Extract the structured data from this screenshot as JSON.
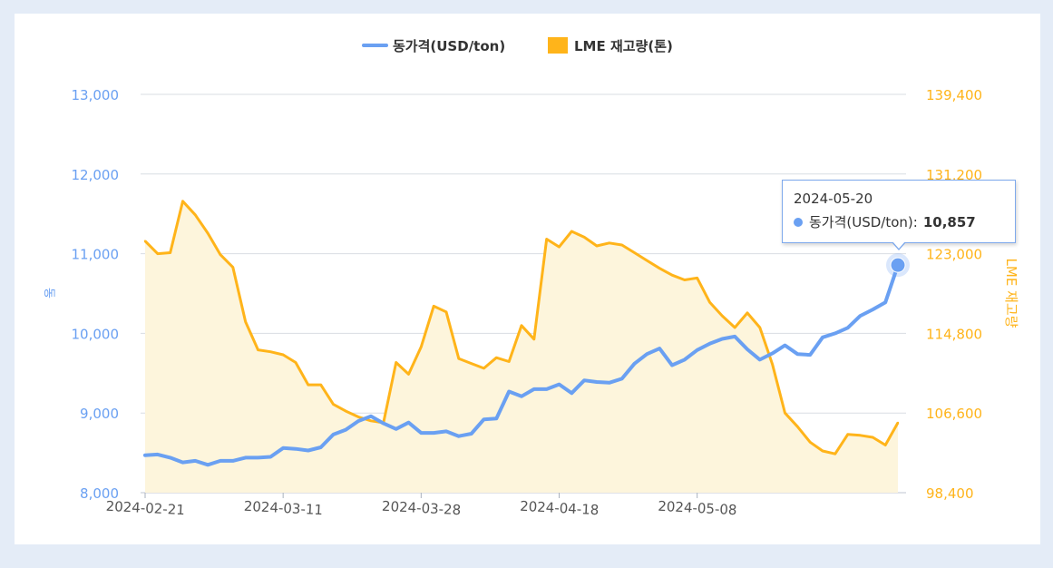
{
  "chart_data": {
    "type": "line",
    "legend_position": "top-center",
    "grid": true,
    "x_tick_labels": [
      "2024-02-21",
      "2024-03-11",
      "2024-03-28",
      "2024-04-18",
      "2024-05-08"
    ],
    "x_tick_indices": [
      0,
      11,
      22,
      33,
      44
    ],
    "series": [
      {
        "name": "동가격(USD/ton)",
        "axis": "left",
        "color": "#6aa0f2",
        "kind": "line",
        "values": [
          8470,
          8480,
          8440,
          8380,
          8400,
          8350,
          8400,
          8400,
          8440,
          8440,
          8450,
          8560,
          8550,
          8530,
          8570,
          8730,
          8790,
          8900,
          8960,
          8870,
          8800,
          8880,
          8750,
          8750,
          8770,
          8710,
          8740,
          8920,
          8930,
          9270,
          9210,
          9300,
          9300,
          9360,
          9250,
          9410,
          9390,
          9380,
          9430,
          9620,
          9740,
          9810,
          9600,
          9670,
          9790,
          9870,
          9930,
          9960,
          9800,
          9670,
          9750,
          9850,
          9740,
          9730,
          9950,
          10000,
          10070,
          10220,
          10300,
          10390,
          10857
        ]
      },
      {
        "name": "LME 재고량(톤)",
        "axis": "right",
        "color": "#ffb41a",
        "fill": "#fdf5dc",
        "kind": "area",
        "values": [
          124300,
          123000,
          123100,
          128400,
          127000,
          125100,
          122900,
          121600,
          116000,
          113100,
          112900,
          112600,
          111800,
          109500,
          109500,
          107500,
          106800,
          106200,
          105800,
          105600,
          111800,
          110600,
          113400,
          117600,
          117000,
          112200,
          111700,
          111200,
          112300,
          111900,
          115600,
          114200,
          124500,
          123700,
          125300,
          124700,
          123800,
          124100,
          123900,
          123100,
          122300,
          121500,
          120800,
          120300,
          120500,
          118000,
          116600,
          115400,
          116900,
          115400,
          111600,
          106600,
          105200,
          103600,
          102700,
          102400,
          104400,
          104300,
          104100,
          103300,
          105600
        ]
      }
    ],
    "left_axis": {
      "label": "동",
      "ylim": [
        8000,
        13000
      ],
      "ticks": [
        "8,000",
        "9,000",
        "10,000",
        "11,000",
        "12,000",
        "13,000"
      ]
    },
    "right_axis": {
      "label": "LME 재고량",
      "ylim": [
        98400,
        139400
      ],
      "ticks": [
        "98,400",
        "106,600",
        "114,800",
        "123,000",
        "131,200",
        "139,400"
      ]
    },
    "tooltip": {
      "date": "2024-05-20",
      "series_label": "동가격(USD/ton):",
      "value": "10,857"
    }
  }
}
